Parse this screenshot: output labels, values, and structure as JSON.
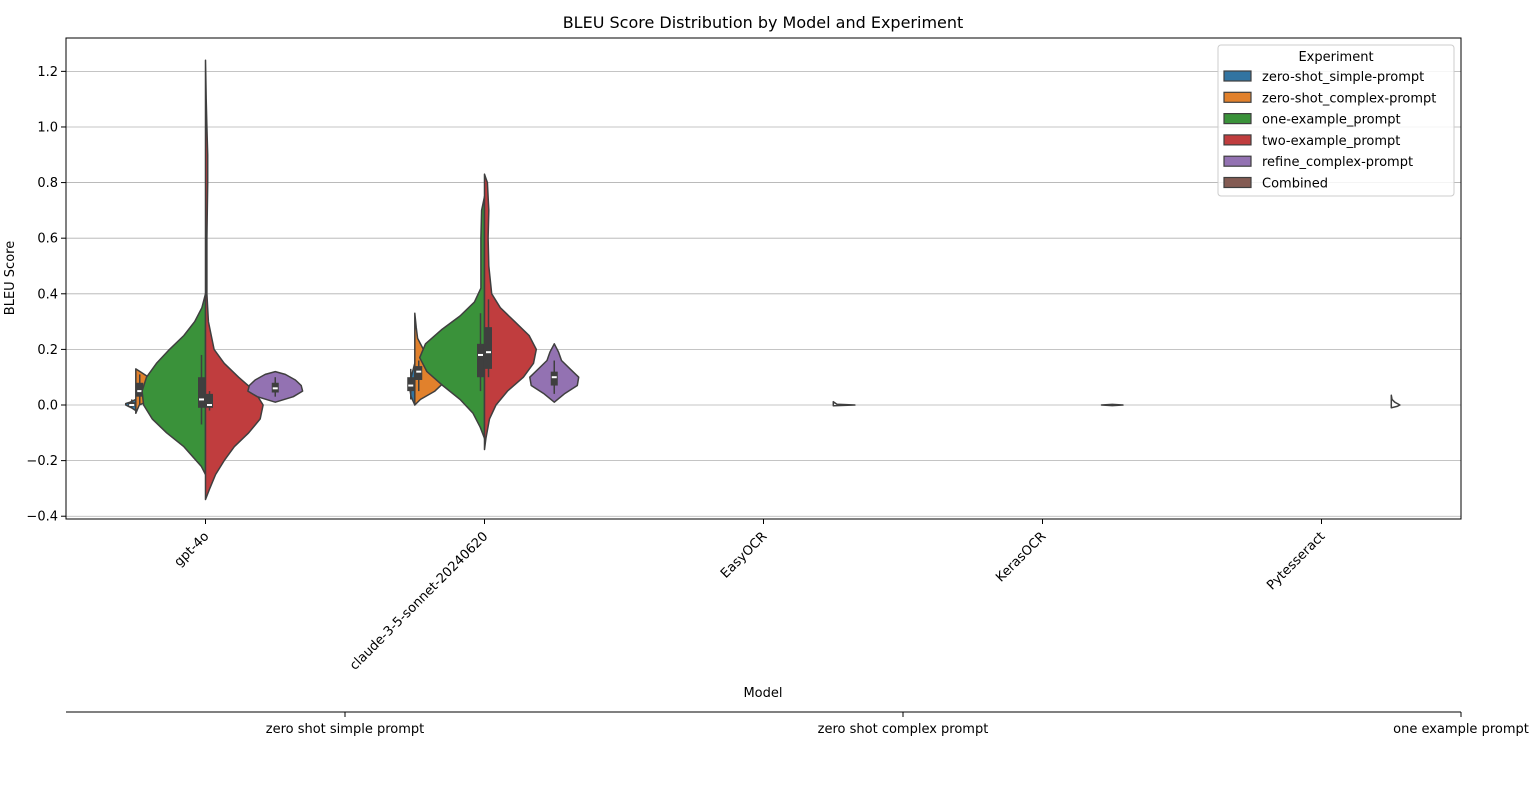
{
  "chart_data": {
    "type": "violin",
    "title": "BLEU Score Distribution by Model and Experiment",
    "xlabel": "Model",
    "ylabel": "BLEU Score",
    "ylim": [
      -0.41,
      1.32
    ],
    "yticks": [
      "−0.4",
      "−0.2",
      "0.0",
      "0.2",
      "0.4",
      "0.6",
      "0.8",
      "1.0",
      "1.2"
    ],
    "ytick_values": [
      -0.4,
      -0.2,
      0.0,
      0.2,
      0.4,
      0.6,
      0.8,
      1.0,
      1.2
    ],
    "grid": "horizontal",
    "categories": [
      "gpt-4o",
      "claude-3-5-sonnet-20240620",
      "EasyOCR",
      "KerasOCR",
      "Pytesseract"
    ],
    "legend": {
      "title": "Experiment",
      "placement": "top-right",
      "entries": [
        {
          "label": "zero-shot_simple-prompt",
          "color": "#3274a1"
        },
        {
          "label": "zero-shot_complex-prompt",
          "color": "#e1812c"
        },
        {
          "label": "one-example_prompt",
          "color": "#3a923a"
        },
        {
          "label": "two-example_prompt",
          "color": "#c03d3e"
        },
        {
          "label": "refine_complex-prompt",
          "color": "#9372b2"
        },
        {
          "label": "Combined",
          "color": "#845b53"
        }
      ]
    },
    "series": [
      {
        "name": "zero-shot_simple-prompt / gpt-4o",
        "category": 0,
        "offset": -0.25,
        "side": "left",
        "color": "#3274a1",
        "median": 0.0,
        "q1": -0.005,
        "q3": 0.01,
        "whisker": [
          -0.01,
          0.02
        ],
        "profile": [
          [
            -0.02,
            0.0
          ],
          [
            -0.01,
            0.06
          ],
          [
            0.0,
            0.14
          ],
          [
            0.005,
            0.14
          ],
          [
            0.01,
            0.08
          ],
          [
            0.02,
            0.0
          ]
        ]
      },
      {
        "name": "zero-shot_complex-prompt / gpt-4o",
        "category": 0,
        "offset": -0.25,
        "side": "right",
        "color": "#e1812c",
        "median": 0.05,
        "q1": 0.03,
        "q3": 0.08,
        "whisker": [
          0.0,
          0.11
        ],
        "profile": [
          [
            -0.03,
            0.0
          ],
          [
            0.0,
            0.05
          ],
          [
            0.02,
            0.22
          ],
          [
            0.04,
            0.35
          ],
          [
            0.06,
            0.37
          ],
          [
            0.08,
            0.32
          ],
          [
            0.1,
            0.18
          ],
          [
            0.12,
            0.06
          ],
          [
            0.13,
            0.0
          ]
        ]
      },
      {
        "name": "one-example_prompt / gpt-4o",
        "category": 0,
        "offset": 0.0,
        "side": "left",
        "color": "#3a923a",
        "median": 0.02,
        "q1": -0.01,
        "q3": 0.1,
        "whisker": [
          -0.07,
          0.18
        ],
        "profile": [
          [
            -0.25,
            0.0
          ],
          [
            -0.22,
            0.06
          ],
          [
            -0.15,
            0.3
          ],
          [
            -0.1,
            0.54
          ],
          [
            -0.05,
            0.74
          ],
          [
            0.0,
            0.86
          ],
          [
            0.05,
            0.88
          ],
          [
            0.1,
            0.82
          ],
          [
            0.15,
            0.68
          ],
          [
            0.2,
            0.5
          ],
          [
            0.25,
            0.3
          ],
          [
            0.3,
            0.15
          ],
          [
            0.35,
            0.05
          ],
          [
            0.4,
            0.0
          ]
        ]
      },
      {
        "name": "two-example_prompt / gpt-4o",
        "category": 0,
        "offset": 0.0,
        "side": "right",
        "color": "#c03d3e",
        "median": 0.0,
        "q1": -0.01,
        "q3": 0.04,
        "whisker": [
          -0.02,
          0.05
        ],
        "profile": [
          [
            -0.34,
            0.0
          ],
          [
            -0.3,
            0.06
          ],
          [
            -0.25,
            0.14
          ],
          [
            -0.2,
            0.26
          ],
          [
            -0.15,
            0.4
          ],
          [
            -0.1,
            0.6
          ],
          [
            -0.05,
            0.76
          ],
          [
            0.0,
            0.8
          ],
          [
            0.05,
            0.68
          ],
          [
            0.1,
            0.46
          ],
          [
            0.15,
            0.26
          ],
          [
            0.2,
            0.12
          ],
          [
            0.3,
            0.04
          ],
          [
            0.4,
            0.02
          ],
          [
            0.6,
            0.02
          ],
          [
            0.8,
            0.03
          ],
          [
            0.9,
            0.03
          ],
          [
            1.0,
            0.02
          ],
          [
            1.1,
            0.01
          ],
          [
            1.24,
            0.0
          ]
        ]
      },
      {
        "name": "refine_complex-prompt / gpt-4o",
        "category": 0,
        "offset": 0.25,
        "side": "both",
        "color": "#9372b2",
        "median": 0.06,
        "q1": 0.045,
        "q3": 0.08,
        "whisker": [
          0.03,
          0.1
        ],
        "profile": [
          [
            0.01,
            0.0
          ],
          [
            0.03,
            0.25
          ],
          [
            0.05,
            0.38
          ],
          [
            0.07,
            0.36
          ],
          [
            0.09,
            0.28
          ],
          [
            0.11,
            0.14
          ],
          [
            0.12,
            0.0
          ]
        ]
      },
      {
        "name": "zero-shot_simple-prompt / claude-3-5-sonnet-20240620",
        "category": 1,
        "offset": -0.25,
        "side": "left",
        "color": "#3274a1",
        "median": 0.07,
        "q1": 0.05,
        "q3": 0.1,
        "whisker": [
          0.02,
          0.13
        ],
        "profile": [
          [
            0.0,
            0.0
          ],
          [
            0.03,
            0.05
          ],
          [
            0.06,
            0.07
          ],
          [
            0.09,
            0.06
          ],
          [
            0.12,
            0.03
          ],
          [
            0.15,
            0.0
          ]
        ]
      },
      {
        "name": "zero-shot_complex-prompt / claude-3-5-sonnet-20240620",
        "category": 1,
        "offset": -0.25,
        "side": "right",
        "color": "#e1812c",
        "median": 0.12,
        "q1": 0.09,
        "q3": 0.14,
        "whisker": [
          0.05,
          0.16
        ],
        "profile": [
          [
            0.0,
            0.0
          ],
          [
            0.02,
            0.08
          ],
          [
            0.05,
            0.28
          ],
          [
            0.08,
            0.4
          ],
          [
            0.11,
            0.42
          ],
          [
            0.14,
            0.36
          ],
          [
            0.17,
            0.24
          ],
          [
            0.2,
            0.12
          ],
          [
            0.24,
            0.04
          ],
          [
            0.28,
            0.02
          ],
          [
            0.33,
            0.0
          ]
        ]
      },
      {
        "name": "one-example_prompt / claude-3-5-sonnet-20240620",
        "category": 1,
        "offset": 0.0,
        "side": "left",
        "color": "#3a923a",
        "median": 0.18,
        "q1": 0.1,
        "q3": 0.22,
        "whisker": [
          0.05,
          0.33
        ],
        "profile": [
          [
            -0.12,
            0.0
          ],
          [
            -0.08,
            0.06
          ],
          [
            -0.03,
            0.16
          ],
          [
            0.02,
            0.34
          ],
          [
            0.07,
            0.58
          ],
          [
            0.12,
            0.8
          ],
          [
            0.17,
            0.9
          ],
          [
            0.22,
            0.82
          ],
          [
            0.27,
            0.6
          ],
          [
            0.32,
            0.34
          ],
          [
            0.37,
            0.14
          ],
          [
            0.42,
            0.05
          ],
          [
            0.5,
            0.05
          ],
          [
            0.6,
            0.05
          ],
          [
            0.7,
            0.04
          ],
          [
            0.75,
            0.0
          ]
        ]
      },
      {
        "name": "two-example_prompt / claude-3-5-sonnet-20240620",
        "category": 1,
        "offset": 0.0,
        "side": "right",
        "color": "#c03d3e",
        "median": 0.19,
        "q1": 0.13,
        "q3": 0.28,
        "whisker": [
          0.1,
          0.38
        ],
        "profile": [
          [
            -0.16,
            0.0
          ],
          [
            -0.12,
            0.02
          ],
          [
            -0.05,
            0.07
          ],
          [
            0.0,
            0.16
          ],
          [
            0.05,
            0.32
          ],
          [
            0.1,
            0.54
          ],
          [
            0.15,
            0.68
          ],
          [
            0.2,
            0.72
          ],
          [
            0.25,
            0.62
          ],
          [
            0.3,
            0.42
          ],
          [
            0.35,
            0.22
          ],
          [
            0.4,
            0.1
          ],
          [
            0.5,
            0.06
          ],
          [
            0.6,
            0.05
          ],
          [
            0.7,
            0.06
          ],
          [
            0.8,
            0.04
          ],
          [
            0.83,
            0.0
          ]
        ]
      },
      {
        "name": "refine_complex-prompt / claude-3-5-sonnet-20240620",
        "category": 1,
        "offset": 0.25,
        "side": "both",
        "color": "#9372b2",
        "median": 0.1,
        "q1": 0.07,
        "q3": 0.12,
        "whisker": [
          0.04,
          0.16
        ],
        "profile": [
          [
            0.01,
            0.0
          ],
          [
            0.04,
            0.14
          ],
          [
            0.07,
            0.32
          ],
          [
            0.1,
            0.34
          ],
          [
            0.13,
            0.22
          ],
          [
            0.16,
            0.1
          ],
          [
            0.19,
            0.06
          ],
          [
            0.22,
            0.0
          ]
        ]
      },
      {
        "name": "EasyOCR",
        "category": 2,
        "offset": 0.25,
        "side": "right",
        "color": "#ffffff",
        "median": 0.0,
        "q1": 0.0,
        "q3": 0.0,
        "whisker": [
          0.0,
          0.0
        ],
        "profile": [
          [
            -0.003,
            0.0
          ],
          [
            0.0,
            0.3
          ],
          [
            0.003,
            0.05
          ],
          [
            0.012,
            0.0
          ]
        ]
      },
      {
        "name": "KerasOCR",
        "category": 3,
        "offset": 0.25,
        "side": "both",
        "color": "#ffffff",
        "median": 0.0,
        "q1": 0.0,
        "q3": 0.0,
        "whisker": [
          0.0,
          0.0
        ],
        "profile": [
          [
            -0.002,
            0.0
          ],
          [
            0.0,
            0.15
          ],
          [
            0.002,
            0.0
          ]
        ]
      },
      {
        "name": "Pytesseract",
        "category": 4,
        "offset": 0.25,
        "side": "right",
        "color": "#ffffff",
        "median": 0.0,
        "q1": 0.0,
        "q3": 0.0,
        "whisker": [
          0.0,
          0.0
        ],
        "profile": [
          [
            -0.01,
            0.0
          ],
          [
            -0.005,
            0.08
          ],
          [
            0.0,
            0.12
          ],
          [
            0.01,
            0.05
          ],
          [
            0.02,
            0.01
          ],
          [
            0.035,
            0.0
          ]
        ]
      }
    ],
    "secondary_axis": {
      "labels": [
        "zero shot simple prompt",
        "zero shot complex prompt",
        "one example prompt"
      ]
    }
  }
}
